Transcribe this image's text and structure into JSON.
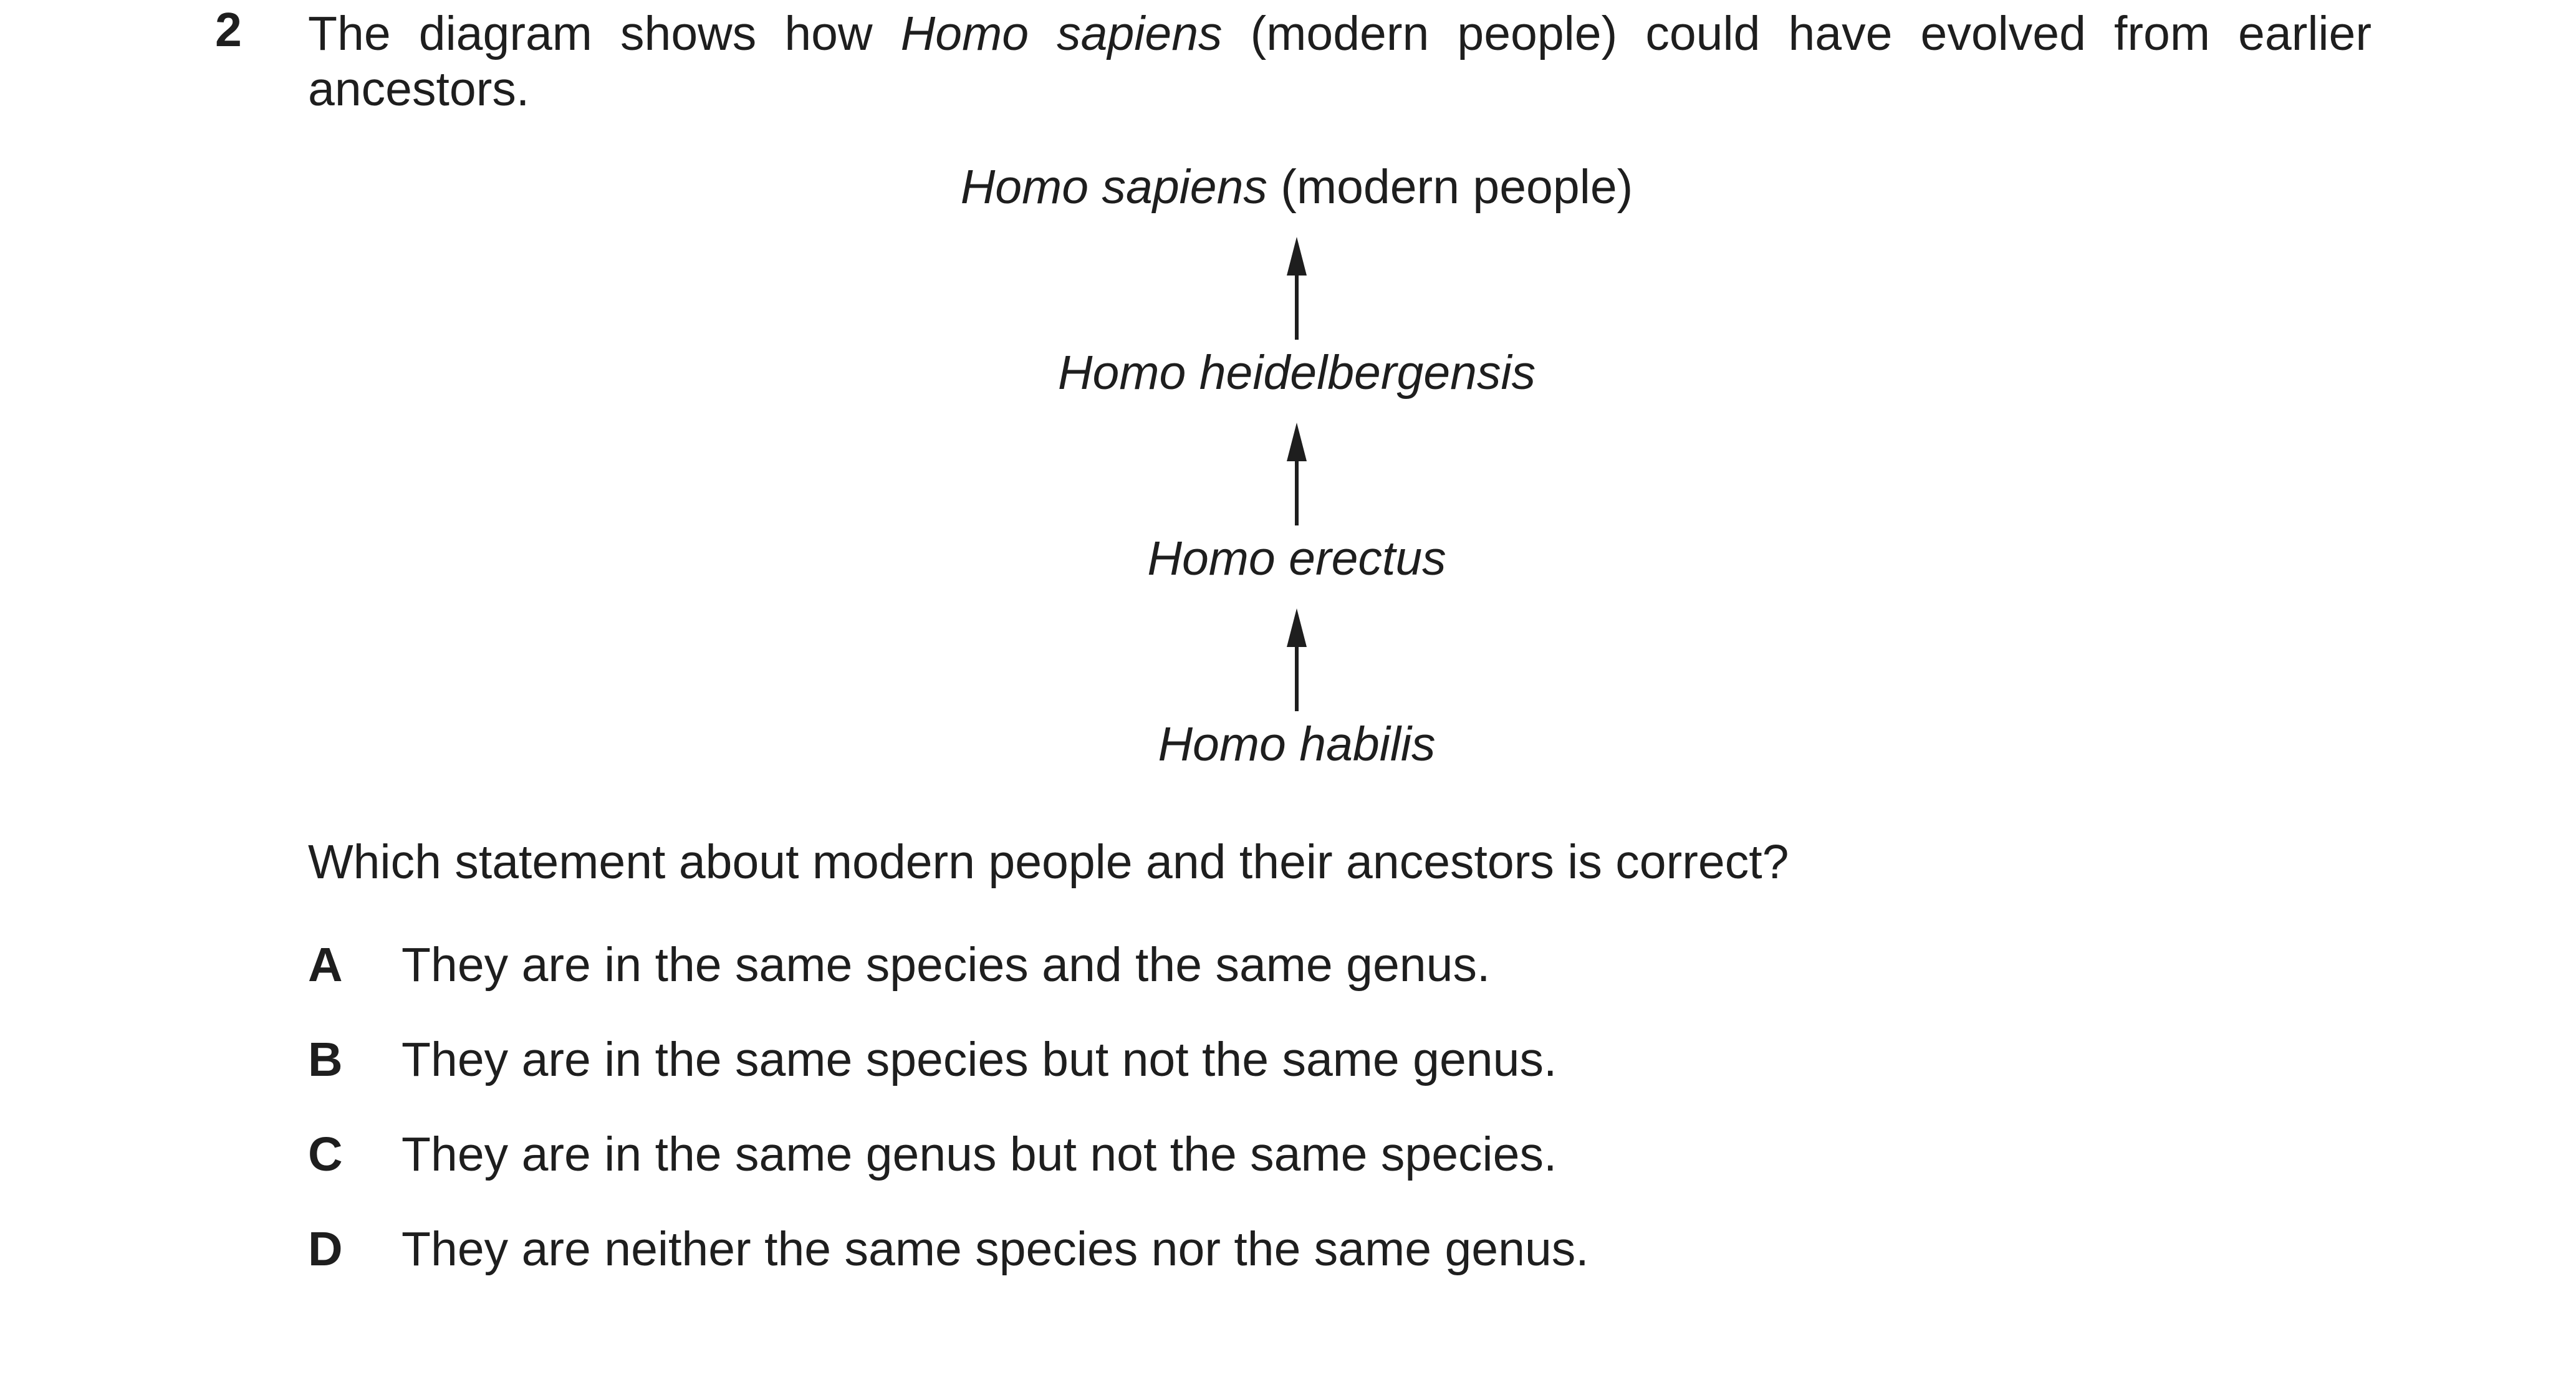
{
  "question": {
    "number": "2",
    "intro": {
      "before": "The diagram shows how ",
      "species_italic": "Homo sapiens",
      "after": " (modern people) could have evolved from earlier ancestors."
    }
  },
  "diagram": {
    "nodes": [
      {
        "italic": "Homo sapiens",
        "suffix": " (modern people)"
      },
      {
        "italic": "Homo heidelbergensis",
        "suffix": ""
      },
      {
        "italic": "Homo erectus",
        "suffix": ""
      },
      {
        "italic": "Homo habilis",
        "suffix": ""
      }
    ],
    "arrow_color": "#1e1e1e"
  },
  "prompt": "Which statement about modern people and their ancestors is correct?",
  "options": [
    {
      "letter": "A",
      "text": "They are in the same species and the same genus."
    },
    {
      "letter": "B",
      "text": "They are in the same species but not the same genus."
    },
    {
      "letter": "C",
      "text": "They are in the same genus but not the same species."
    },
    {
      "letter": "D",
      "text": "They are neither the same species nor the same genus."
    }
  ]
}
